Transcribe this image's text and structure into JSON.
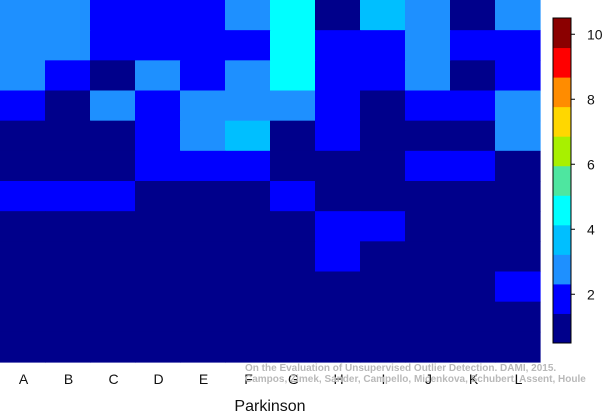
{
  "chart_data": {
    "type": "heatmap",
    "title": "",
    "xlabel": "Parkinson",
    "ylabel": "",
    "columns": [
      "A",
      "B",
      "C",
      "D",
      "E",
      "F",
      "G",
      "H",
      "I",
      "J",
      "K",
      "L"
    ],
    "rows_top_to_bottom": 12,
    "values": [
      [
        3,
        3,
        2,
        2,
        2,
        3,
        5,
        1,
        4,
        3,
        1,
        3
      ],
      [
        3,
        3,
        2,
        2,
        2,
        2,
        5,
        2,
        2,
        3,
        2,
        2
      ],
      [
        3,
        2,
        1,
        3,
        2,
        3,
        5,
        2,
        2,
        3,
        1,
        2
      ],
      [
        2,
        1,
        3,
        2,
        3,
        3,
        3,
        2,
        1,
        2,
        2,
        3
      ],
      [
        1,
        1,
        1,
        2,
        3,
        4,
        1,
        2,
        1,
        1,
        1,
        3
      ],
      [
        1,
        1,
        1,
        2,
        2,
        2,
        1,
        1,
        1,
        2,
        2,
        1
      ],
      [
        2,
        2,
        2,
        1,
        1,
        1,
        2,
        1,
        1,
        1,
        1,
        1
      ],
      [
        1,
        1,
        1,
        1,
        1,
        1,
        1,
        2,
        2,
        1,
        1,
        1
      ],
      [
        1,
        1,
        1,
        1,
        1,
        1,
        1,
        2,
        1,
        1,
        1,
        1
      ],
      [
        1,
        1,
        1,
        1,
        1,
        1,
        1,
        1,
        1,
        1,
        1,
        2
      ],
      [
        1,
        1,
        1,
        1,
        1,
        1,
        1,
        1,
        1,
        1,
        1,
        1
      ],
      [
        1,
        1,
        1,
        1,
        1,
        1,
        1,
        1,
        1,
        1,
        1,
        1
      ]
    ],
    "colorbar": {
      "min": 0.5,
      "max": 10.5,
      "ticks": [
        2,
        4,
        6,
        8,
        10
      ],
      "colors": [
        "#00008b",
        "#0000ff",
        "#1e90ff",
        "#00bfff",
        "#00ffff",
        "#4ee6a0",
        "#a8f000",
        "#ffd700",
        "#ff8c00",
        "#ff0000",
        "#8b0000"
      ]
    },
    "credit_lines": [
      "On the Evaluation of Unsupervised Outlier Detection. DAMI, 2015.",
      "Campos, Zimek, Sander, Campello, Micenkova, Schubert, Assent, Houle"
    ],
    "grid": false,
    "legend": "colorbar-right"
  }
}
